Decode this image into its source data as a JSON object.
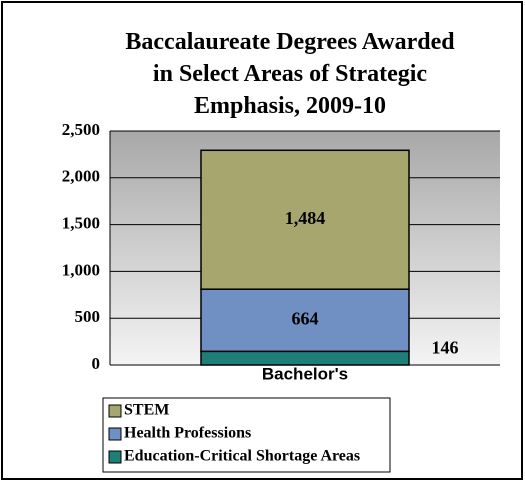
{
  "chart_data": {
    "type": "stacked_bar",
    "title": "Baccalaureate Degrees Awarded in Select Areas of Strategic Emphasis, 2009-10",
    "categories": [
      "Bachelor's"
    ],
    "series": [
      {
        "name": "Education-Critical Shortage Areas",
        "color": "#1f7f78",
        "values": [
          146
        ],
        "value_labels": [
          "146"
        ]
      },
      {
        "name": "Health Professions",
        "color": "#7090c4",
        "values": [
          664
        ],
        "value_labels": [
          "664"
        ]
      },
      {
        "name": "STEM",
        "color": "#a6a66e",
        "values": [
          1484
        ],
        "value_labels": [
          "1,484"
        ]
      }
    ],
    "ylim": [
      0,
      2500
    ],
    "yticks": [
      0,
      500,
      {
        "value": 1000,
        "label": "1,000"
      },
      {
        "value": 1500,
        "label": "1,500"
      },
      {
        "value": 2000,
        "label": "2,000"
      },
      {
        "value": 2500,
        "label": "2,500"
      }
    ],
    "grid": true,
    "legend": "bottom"
  }
}
